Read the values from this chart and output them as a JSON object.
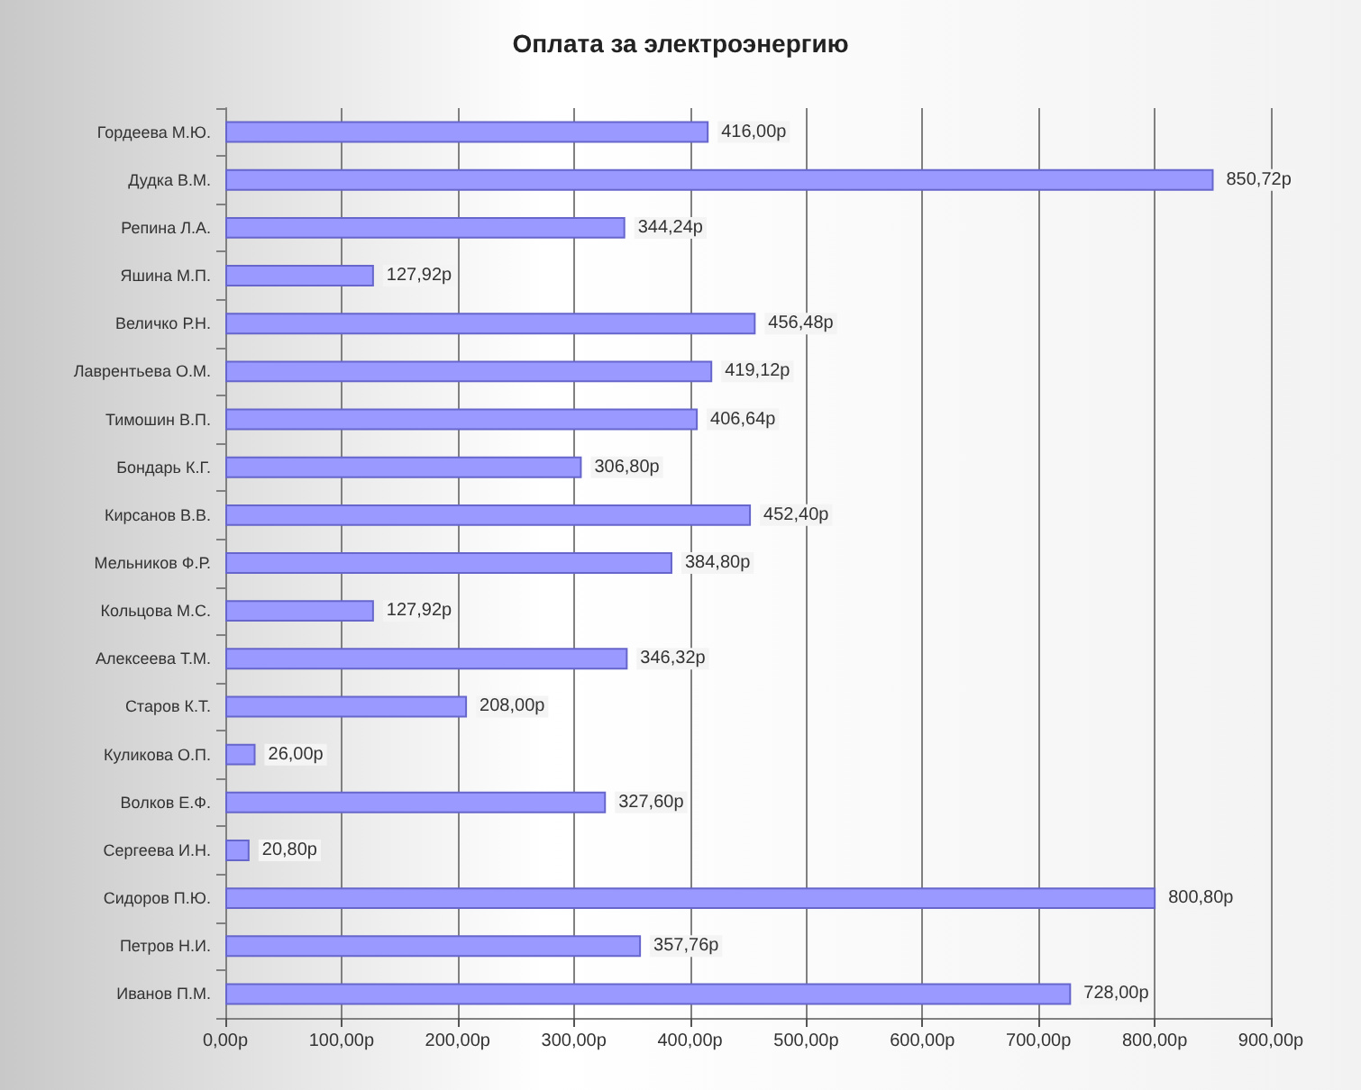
{
  "chart_data": {
    "type": "bar",
    "orientation": "horizontal",
    "title": "Оплата за электроэнергию",
    "categories": [
      "Гордеева М.Ю.",
      "Дудка В.М.",
      "Репина Л.А.",
      "Яшина М.П.",
      "Величко Р.Н.",
      "Лаврентьева О.М.",
      "Тимошин В.П.",
      "Бондарь К.Г.",
      "Кирсанов В.В.",
      "Мельников Ф.Р.",
      "Кольцова М.С.",
      "Алексеева Т.М.",
      "Старов К.Т.",
      "Куликова О.П.",
      "Волков Е.Ф.",
      "Сергеева И.Н.",
      "Сидоров П.Ю.",
      "Петров Н.И.",
      "Иванов П.М."
    ],
    "values": [
      416.0,
      850.72,
      344.24,
      127.92,
      456.48,
      419.12,
      406.64,
      306.8,
      452.4,
      384.8,
      127.92,
      346.32,
      208.0,
      26.0,
      327.6,
      20.8,
      800.8,
      357.76,
      728.0
    ],
    "value_labels": [
      "416,00р",
      "850,72р",
      "344,24р",
      "127,92р",
      "456,48р",
      "419,12р",
      "406,64р",
      "306,80р",
      "452,40р",
      "384,80р",
      "127,92р",
      "346,32р",
      "208,00р",
      "26,00р",
      "327,60р",
      "20,80р",
      "800,80р",
      "357,76р",
      "728,00р"
    ],
    "color": "#9999ff",
    "xlim": [
      0,
      900
    ],
    "xticks": [
      {
        "value": 0,
        "label": "0,00р"
      },
      {
        "value": 100,
        "label": "100,00р"
      },
      {
        "value": 200,
        "label": "200,00р"
      },
      {
        "value": 300,
        "label": "300,00р"
      },
      {
        "value": 400,
        "label": "400,00р"
      },
      {
        "value": 500,
        "label": "500,00р"
      },
      {
        "value": 600,
        "label": "600,00р"
      },
      {
        "value": 700,
        "label": "700,00р"
      },
      {
        "value": 800,
        "label": "800,00р"
      },
      {
        "value": 900,
        "label": "900,00р"
      }
    ],
    "grid": "x"
  }
}
